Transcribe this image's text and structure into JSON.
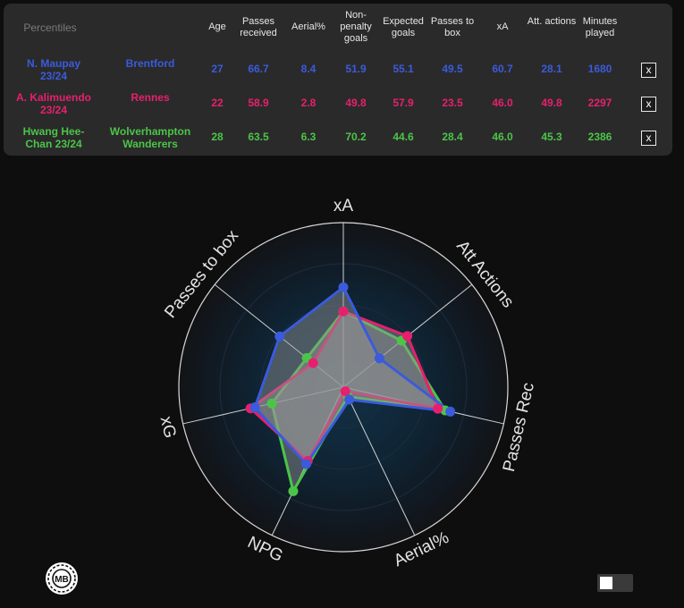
{
  "table": {
    "corner_label": "Percentiles",
    "headers": [
      "Age",
      "Passes received",
      "Aerial%",
      "Non-penalty goals",
      "Expected goals",
      "Passes to box",
      "xA",
      "Att. actions",
      "Minutes played"
    ],
    "remove_label": "x",
    "rows": [
      {
        "player": "N. Maupay 23/24",
        "team": "Brentford",
        "color": "#3b5bdb",
        "values": [
          "27",
          "66.7",
          "8.4",
          "51.9",
          "55.1",
          "49.5",
          "60.7",
          "28.1",
          "1680"
        ]
      },
      {
        "player": "A. Kalimuendo 23/24",
        "team": "Rennes",
        "color": "#e6206e",
        "values": [
          "22",
          "58.9",
          "2.8",
          "49.8",
          "57.9",
          "23.5",
          "46.0",
          "49.8",
          "2297"
        ]
      },
      {
        "player": "Hwang Hee-Chan 23/24",
        "team": "Wolverhampton Wanderers",
        "color": "#4cc449",
        "values": [
          "28",
          "63.5",
          "6.3",
          "70.2",
          "44.6",
          "28.4",
          "46.0",
          "45.3",
          "2386"
        ]
      }
    ]
  },
  "chart_data": {
    "type": "radar",
    "axes": [
      "xA",
      "Att Actions",
      "Passes Rec",
      "Aerial%",
      "NPG",
      "xG",
      "Passes to box"
    ],
    "range": [
      0,
      100
    ],
    "series": [
      {
        "name": "N. Maupay 23/24",
        "color": "#3b5bdb",
        "values": [
          60.7,
          28.1,
          66.7,
          8.4,
          51.9,
          55.1,
          49.5
        ]
      },
      {
        "name": "A. Kalimuendo 23/24",
        "color": "#e6206e",
        "values": [
          46.0,
          49.8,
          58.9,
          2.8,
          49.8,
          57.9,
          23.5
        ]
      },
      {
        "name": "Hwang Hee-Chan 23/24",
        "color": "#4cc449",
        "values": [
          46.0,
          45.3,
          63.5,
          6.3,
          70.2,
          44.6,
          28.4
        ]
      }
    ]
  },
  "logo_text": "MB",
  "icons": {
    "logo": "mb-logo-icon",
    "toggle": "theme-toggle"
  }
}
